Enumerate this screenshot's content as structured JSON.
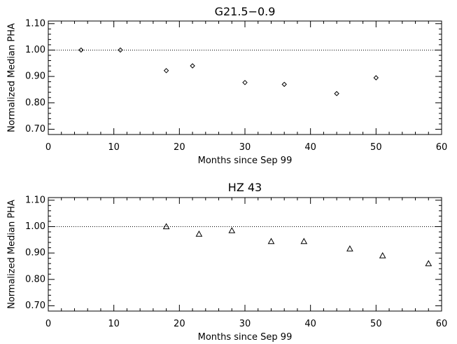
{
  "chart_data": [
    {
      "type": "scatter",
      "title": "G21.5−0.9",
      "xlabel": "Months since Sep 99",
      "ylabel": "Normalized Median PHA",
      "xlim": [
        0,
        60
      ],
      "ylim": [
        0.68,
        1.11
      ],
      "x_ticks": [
        "0",
        "10",
        "20",
        "30",
        "40",
        "50",
        "60"
      ],
      "y_ticks": [
        "0.70",
        "0.80",
        "0.90",
        "1.00",
        "1.10"
      ],
      "reference_line": 1.0,
      "marker": "diamond",
      "grid": false,
      "series": [
        {
          "x": [
            5,
            11,
            18,
            22,
            30,
            36,
            44,
            50
          ],
          "y": [
            1.0,
            1.0,
            0.922,
            0.94,
            0.877,
            0.87,
            0.835,
            0.895
          ]
        }
      ]
    },
    {
      "type": "scatter",
      "title": "HZ 43",
      "xlabel": "Months since Sep 99",
      "ylabel": "Normalized Median PHA",
      "xlim": [
        0,
        60
      ],
      "ylim": [
        0.68,
        1.11
      ],
      "x_ticks": [
        "0",
        "10",
        "20",
        "30",
        "40",
        "50",
        "60"
      ],
      "y_ticks": [
        "0.70",
        "0.80",
        "0.90",
        "1.00",
        "1.10"
      ],
      "reference_line": 1.0,
      "marker": "triangle",
      "grid": false,
      "series": [
        {
          "x": [
            18,
            23,
            28,
            34,
            39,
            46,
            51,
            58
          ],
          "y": [
            1.0,
            0.972,
            0.985,
            0.944,
            0.944,
            0.916,
            0.89,
            0.86
          ]
        }
      ]
    }
  ]
}
